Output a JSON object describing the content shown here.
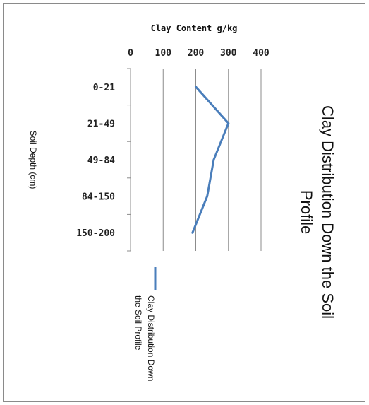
{
  "chart_data": {
    "type": "line",
    "title": "Clay Distribution Down the Soil Profile",
    "xlabel": "Clay Content g/kg",
    "ylabel": "Soil Depth (cm)",
    "xlim": [
      0,
      400
    ],
    "xticks": [
      "0",
      "100",
      "200",
      "300",
      "400"
    ],
    "categories": [
      "0-21",
      "21-49",
      "49-84",
      "84-150",
      "150-200"
    ],
    "series": [
      {
        "name": "Clay Distribution Down the Soil Profile",
        "values": [
          200,
          300,
          255,
          235,
          190
        ],
        "color": "#4a7ebb"
      }
    ],
    "grid": true,
    "legend": "bottom"
  }
}
